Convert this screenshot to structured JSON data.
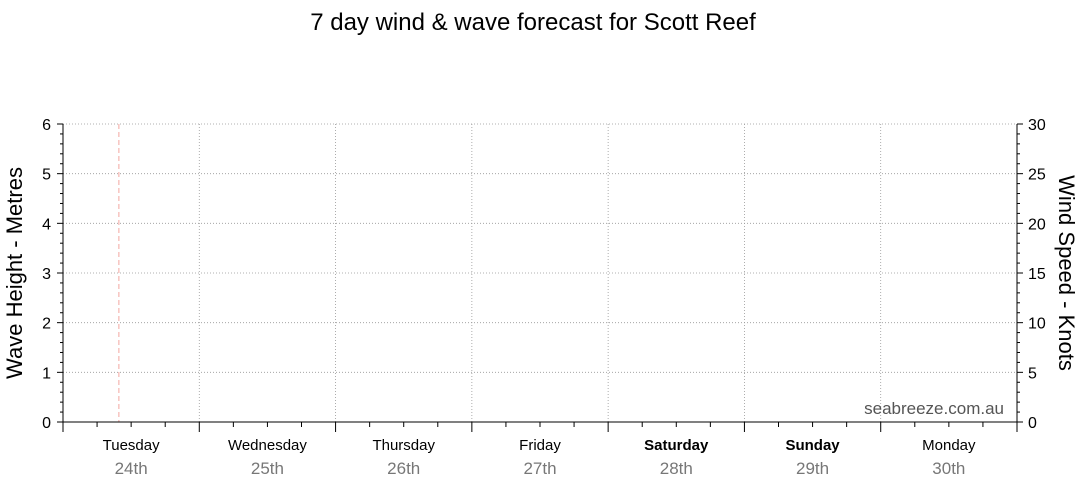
{
  "chart_data": {
    "type": "line",
    "title": "7 day wind & wave forecast for Scott Reef",
    "y_left": {
      "label": "Wave Height - Metres",
      "range": [
        0,
        6
      ],
      "ticks": [
        0,
        1,
        2,
        3,
        4,
        5,
        6
      ]
    },
    "y_right": {
      "label": "Wind Speed - Knots",
      "range": [
        0,
        30
      ],
      "ticks": [
        0,
        5,
        10,
        15,
        20,
        25,
        30
      ]
    },
    "x_days": [
      {
        "day": "Tuesday",
        "date": "24th",
        "bold": false
      },
      {
        "day": "Wednesday",
        "date": "25th",
        "bold": false
      },
      {
        "day": "Thursday",
        "date": "26th",
        "bold": false
      },
      {
        "day": "Friday",
        "date": "27th",
        "bold": false
      },
      {
        "day": "Saturday",
        "date": "28th",
        "bold": true
      },
      {
        "day": "Sunday",
        "date": "29th",
        "bold": true
      },
      {
        "day": "Monday",
        "date": "30th",
        "bold": false
      }
    ],
    "now_marker_day_fraction": 0.41,
    "series": [],
    "grid": true,
    "watermark": "seabreeze.com.au",
    "colors": {
      "grid": "#999999",
      "now_marker": "#f4a6a0",
      "axis": "#000000",
      "date_text": "#777777",
      "watermark": "#555555"
    }
  }
}
